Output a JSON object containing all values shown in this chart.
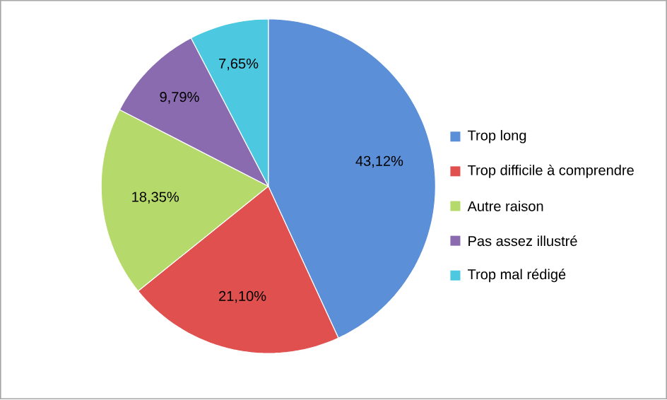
{
  "chart_data": {
    "type": "pie",
    "categories": [
      "Trop long",
      "Trop difficile à comprendre",
      "Autre raison",
      "Pas assez illustré",
      "Trop mal rédigé"
    ],
    "values": [
      43.12,
      21.1,
      18.35,
      9.79,
      7.65
    ],
    "colors": [
      "#5b8fd8",
      "#e0504f",
      "#b6d96b",
      "#8a6bb0",
      "#4cc8e0"
    ],
    "value_labels": [
      "43,12%",
      "21,10%",
      "18,35%",
      "9,79%",
      "7,65%"
    ],
    "legend": "right"
  }
}
